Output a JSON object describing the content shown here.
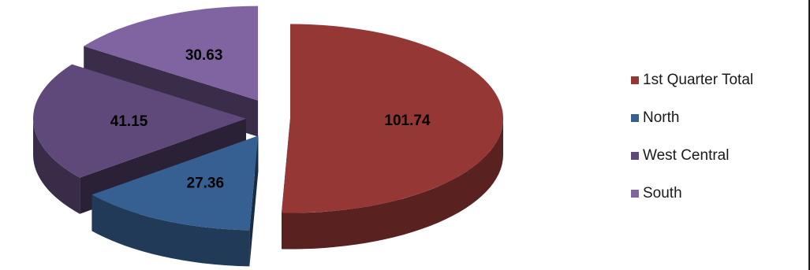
{
  "chart_data": {
    "type": "pie",
    "style": "3d-exploded",
    "categories": [
      "1st Quarter Total",
      "North",
      "West Central",
      "South"
    ],
    "values": [
      101.74,
      27.36,
      41.15,
      30.63
    ],
    "data_labels": [
      "101.74",
      "27.36",
      "41.15",
      "30.63"
    ],
    "colors": [
      "#953735",
      "#376092",
      "#5f497a",
      "#8064a2"
    ],
    "legend_position": "right",
    "title": ""
  }
}
